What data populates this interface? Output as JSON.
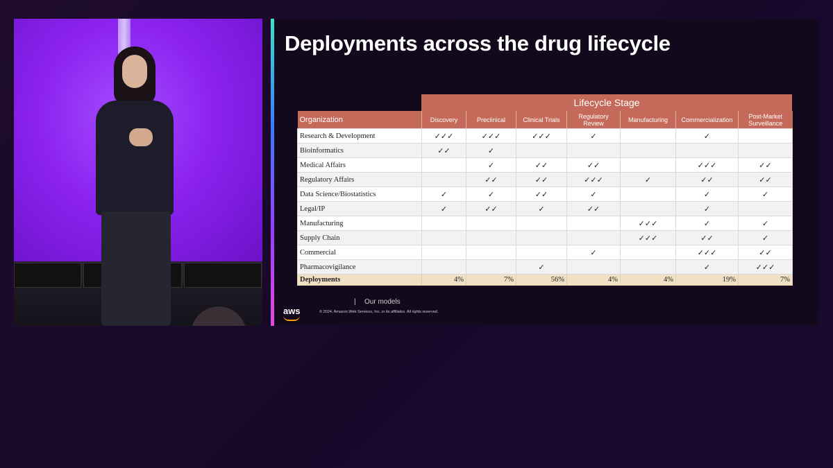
{
  "slide": {
    "title": "Deployments across the drug lifecycle",
    "table": {
      "stage_header": "Lifecycle Stage",
      "org_header": "Organization",
      "stages": [
        "Discovery",
        "Preclinical",
        "Clinical Trials",
        "Regulatory Review",
        "Manufacturing",
        "Commercialization",
        "Post-Market Surveillance"
      ],
      "rows": [
        {
          "org": "Research & Development",
          "cells": [
            "✓✓✓",
            "✓✓✓",
            "✓✓✓",
            "✓",
            "",
            "✓",
            ""
          ]
        },
        {
          "org": "Bioinformatics",
          "cells": [
            "✓✓",
            "✓",
            "",
            "",
            "",
            "",
            ""
          ]
        },
        {
          "org": "Medical Affairs",
          "cells": [
            "",
            "✓",
            "✓✓",
            "✓✓",
            "",
            "✓✓✓",
            "✓✓"
          ]
        },
        {
          "org": "Regulatory Affairs",
          "cells": [
            "",
            "✓✓",
            "✓✓",
            "✓✓✓",
            "✓",
            "✓✓",
            "✓✓"
          ]
        },
        {
          "org": "Data Science/Biostatistics",
          "cells": [
            "✓",
            "✓",
            "✓✓",
            "✓",
            "",
            "✓",
            "✓"
          ]
        },
        {
          "org": "Legal/IP",
          "cells": [
            "✓",
            "✓✓",
            "✓",
            "✓✓",
            "",
            "✓",
            ""
          ]
        },
        {
          "org": "Manufacturing",
          "cells": [
            "",
            "",
            "",
            "",
            "✓✓✓",
            "✓",
            "✓"
          ]
        },
        {
          "org": "Supply Chain",
          "cells": [
            "",
            "",
            "",
            "",
            "✓✓✓",
            "✓✓",
            "✓"
          ]
        },
        {
          "org": "Commercial",
          "cells": [
            "",
            "",
            "",
            "✓",
            "",
            "✓✓✓",
            "✓✓"
          ]
        },
        {
          "org": "Pharmacovigilance",
          "cells": [
            "",
            "",
            "✓",
            "",
            "",
            "✓",
            "✓✓✓"
          ]
        }
      ],
      "total": {
        "label": "Deployments",
        "values": [
          "4%",
          "7%",
          "56%",
          "4%",
          "4%",
          "19%",
          "7%"
        ]
      }
    },
    "footer": {
      "separator": "|",
      "label": "Our models",
      "brand": "aws",
      "copyright": "© 2024, Amazon Web Services, Inc. or its affiliates. All rights reserved."
    }
  }
}
